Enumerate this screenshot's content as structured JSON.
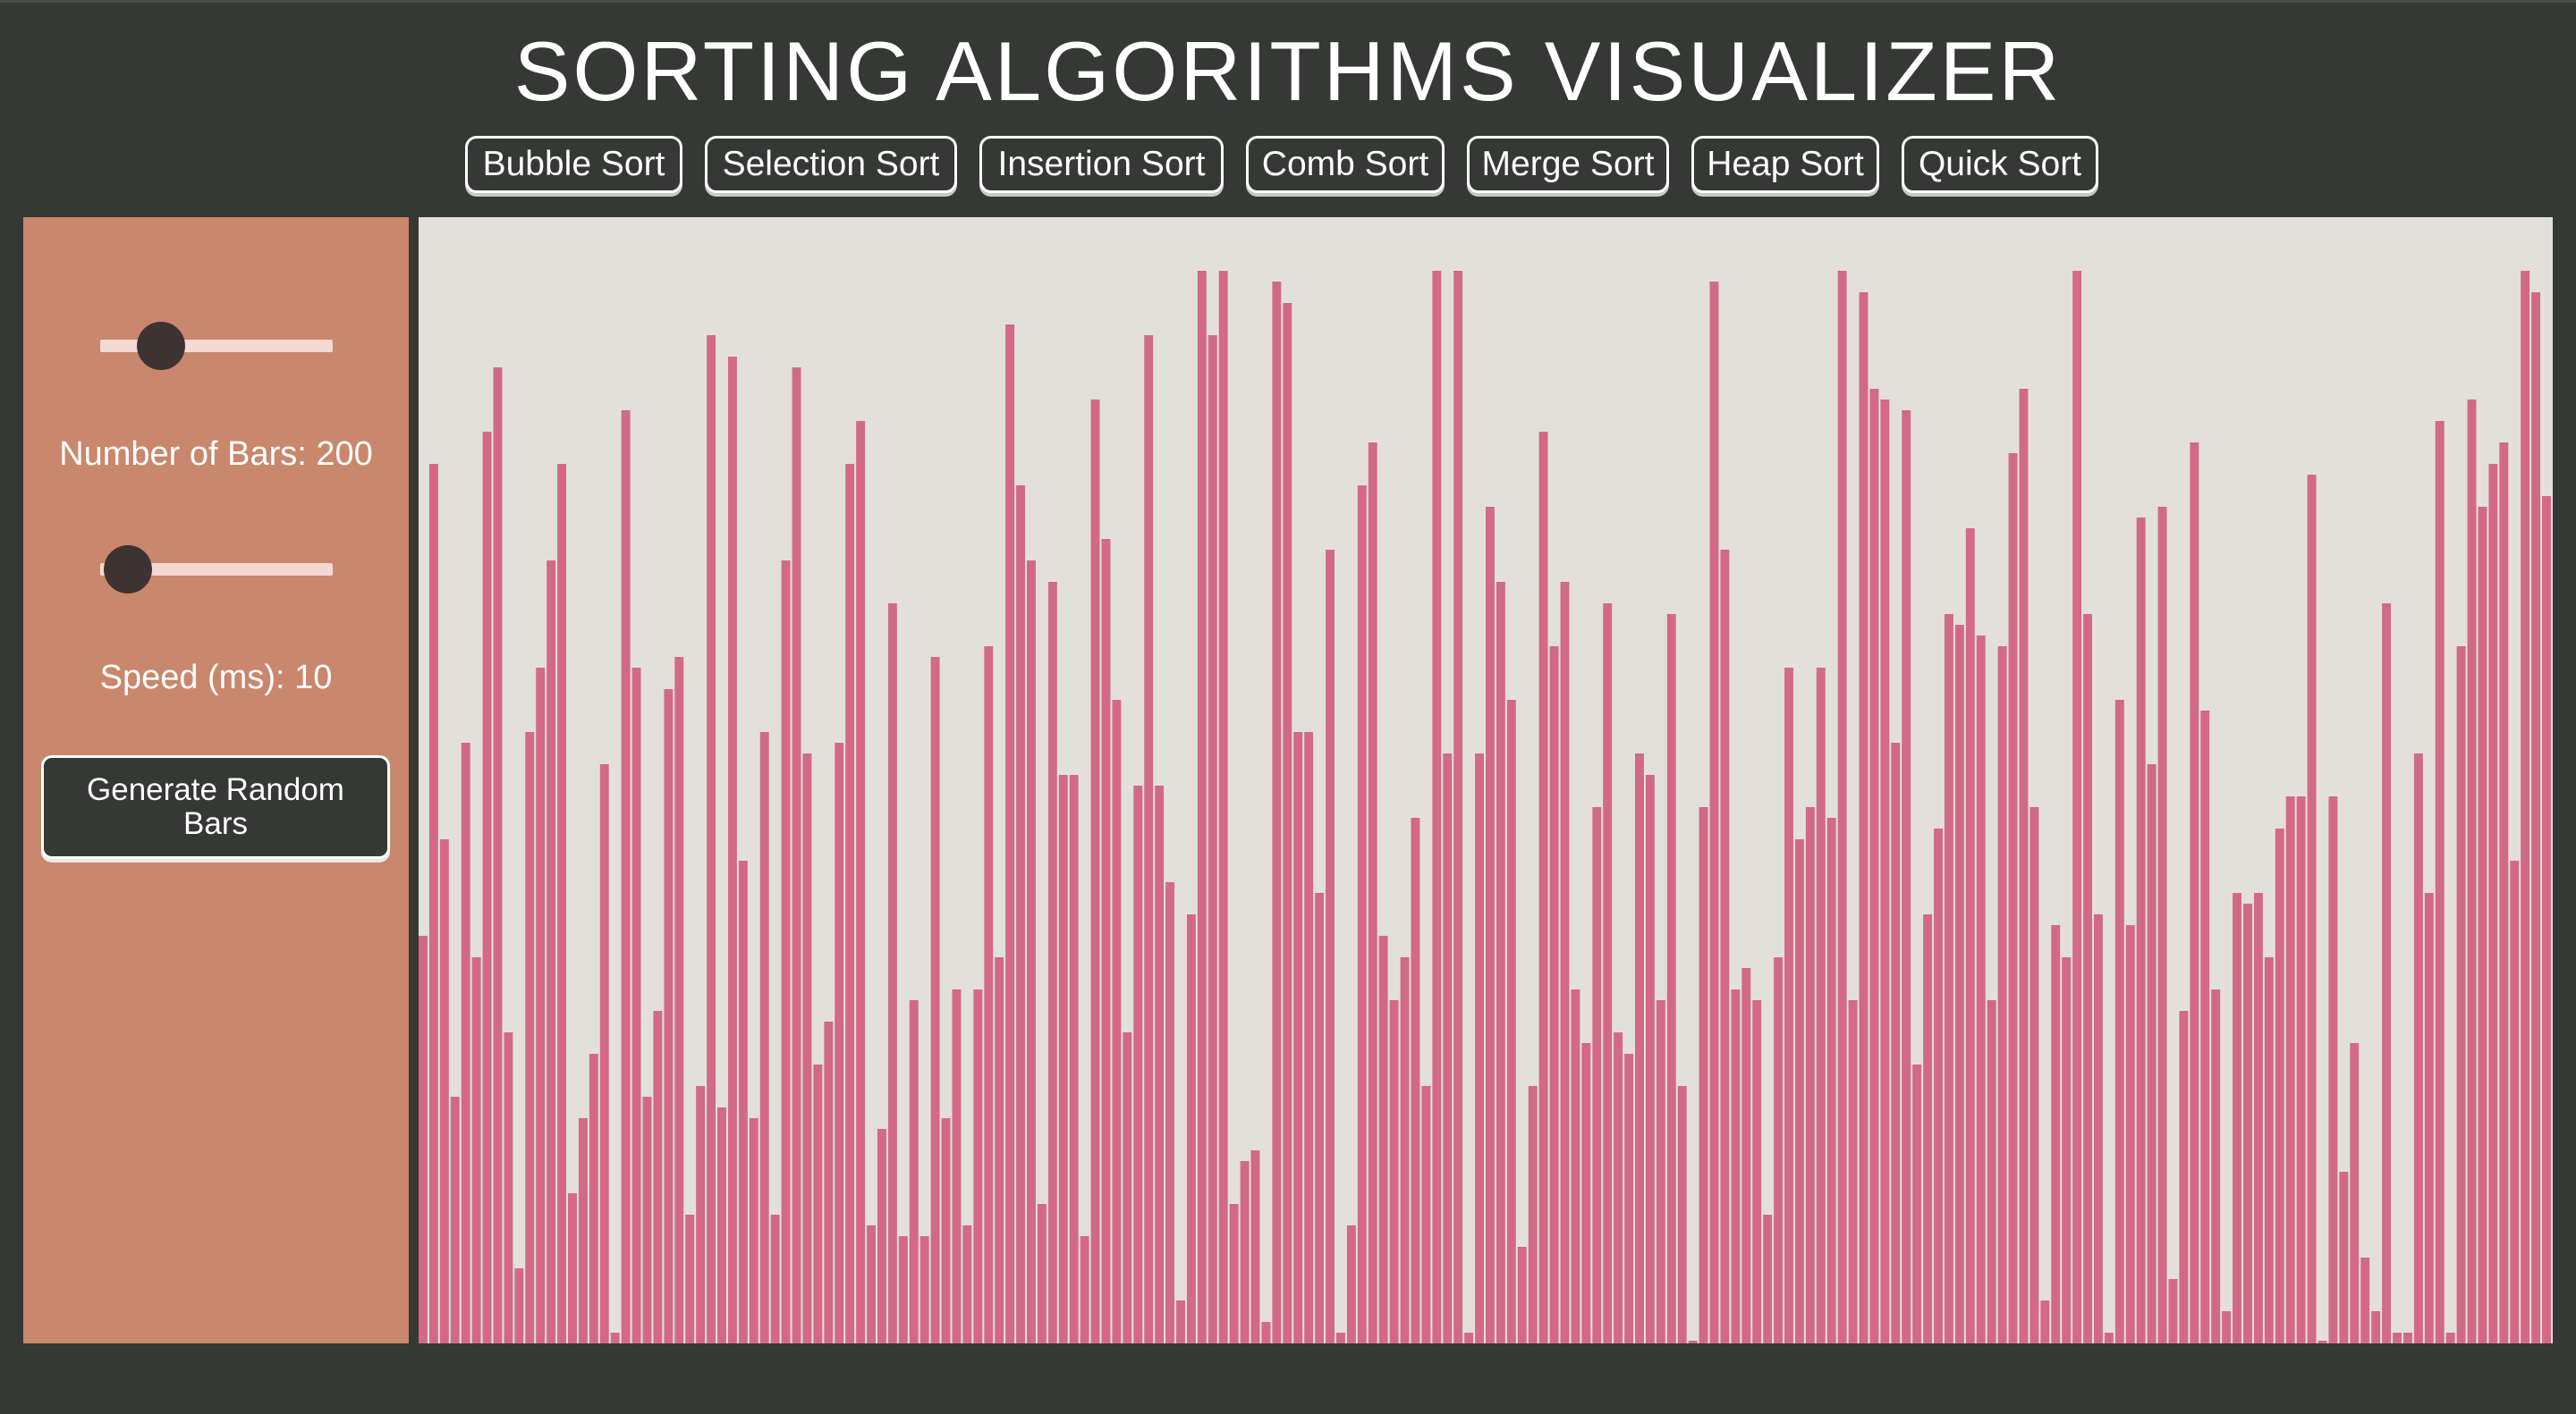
{
  "title": "SORTING ALGORITHMS VISUALIZER",
  "algorithms": [
    {
      "label": "Bubble Sort"
    },
    {
      "label": "Selection Sort"
    },
    {
      "label": "Insertion Sort"
    },
    {
      "label": "Comb Sort"
    },
    {
      "label": "Merge Sort"
    },
    {
      "label": "Heap Sort"
    },
    {
      "label": "Quick Sort"
    }
  ],
  "controls": {
    "bars_label": "Number of Bars: 200",
    "bars_value": 200,
    "bars_slider_fraction": 0.26,
    "speed_label": "Speed (ms): 10",
    "speed_value": 10,
    "speed_slider_fraction": 0.12,
    "generate_label": "Generate Random Bars"
  },
  "colors": {
    "background": "#353835",
    "sidebar": "#c9876d",
    "chart_background": "#e3e0dc",
    "bar": "#d26a86",
    "slider_track": "#f4d9d2",
    "slider_thumb": "#3d3432"
  },
  "chart_data": {
    "type": "bar",
    "max": 100,
    "values": [
      38,
      82,
      47,
      23,
      56,
      36,
      85,
      91,
      29,
      7,
      57,
      63,
      73,
      82,
      14,
      21,
      27,
      54,
      1,
      87,
      63,
      23,
      31,
      61,
      64,
      12,
      24,
      94,
      22,
      92,
      45,
      21,
      57,
      12,
      73,
      91,
      55,
      26,
      30,
      56,
      82,
      86,
      11,
      20,
      69,
      10,
      32,
      10,
      64,
      21,
      33,
      11,
      33,
      65,
      36,
      95,
      80,
      73,
      13,
      71,
      53,
      53,
      10,
      88,
      75,
      60,
      29,
      52,
      94,
      52,
      43,
      4,
      40,
      100,
      94,
      100,
      13,
      17,
      18,
      2,
      99,
      97,
      57,
      57,
      42,
      74,
      1,
      11,
      80,
      84,
      38,
      32,
      36,
      49,
      24,
      100,
      55,
      100,
      1,
      55,
      78,
      71,
      60,
      9,
      24,
      85,
      65,
      71,
      33,
      28,
      50,
      69,
      29,
      27,
      55,
      53,
      32,
      68,
      24,
      0,
      50,
      99,
      74,
      33,
      35,
      32,
      12,
      36,
      63,
      47,
      50,
      63,
      49,
      100,
      32,
      98,
      89,
      88,
      56,
      87,
      26,
      40,
      48,
      68,
      67,
      76,
      66,
      32,
      65,
      83,
      89,
      50,
      4,
      39,
      36,
      100,
      68,
      40,
      1,
      60,
      39,
      77,
      54,
      78,
      6,
      31,
      84,
      59,
      33,
      3,
      42,
      41,
      42,
      36,
      48,
      51,
      51,
      81,
      0,
      51,
      16,
      28,
      8,
      3,
      69,
      1,
      1,
      55,
      42,
      86,
      1,
      65,
      88,
      78,
      82,
      84,
      45,
      100,
      98,
      79
    ]
  }
}
